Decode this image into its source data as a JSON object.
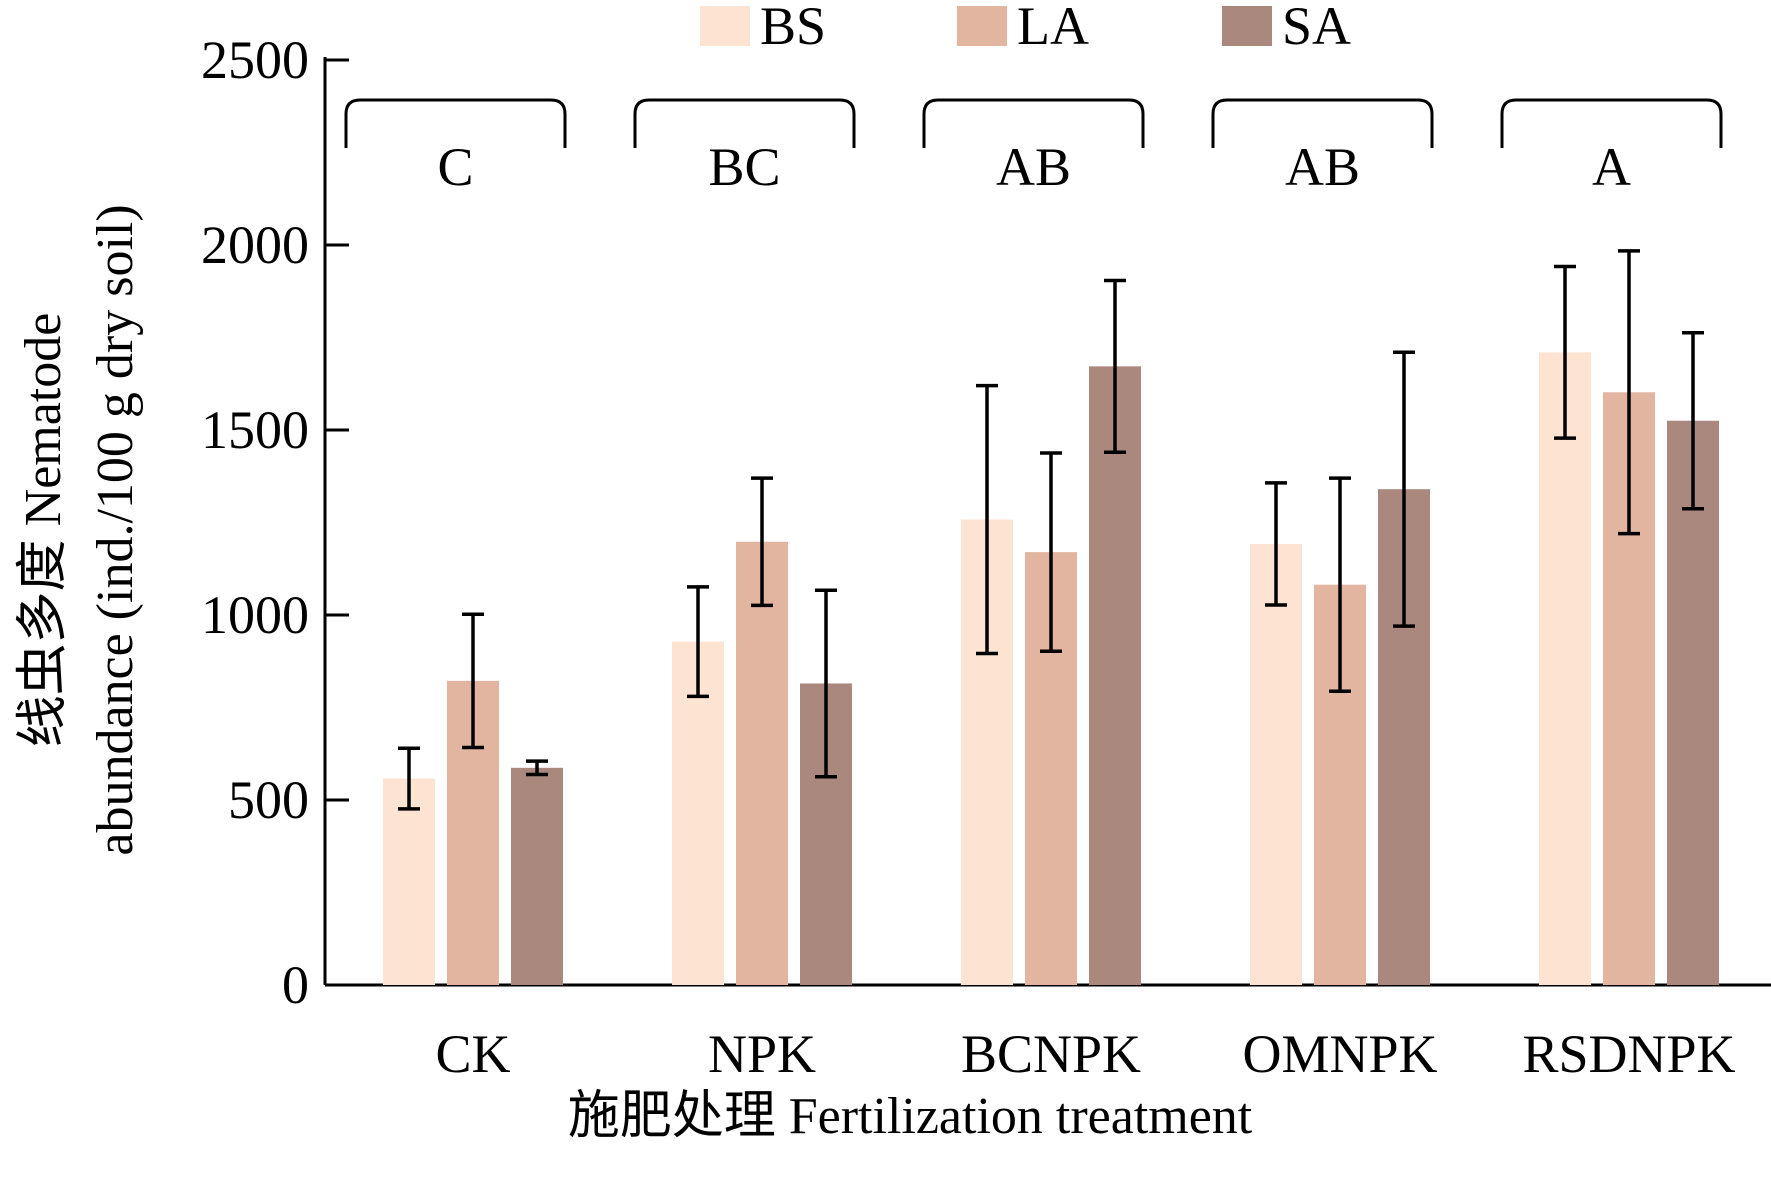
{
  "chart_data": {
    "type": "bar",
    "categories": [
      "CK",
      "NPK",
      "BCNPK",
      "OMNPK",
      "RSDNPK"
    ],
    "series": [
      {
        "name": "BS",
        "color": "#fce3d2",
        "values": [
          558,
          928,
          1258,
          1192,
          1710
        ],
        "errors": [
          82,
          148,
          362,
          165,
          232
        ]
      },
      {
        "name": "LA",
        "color": "#e2b5a1",
        "values": [
          822,
          1198,
          1170,
          1082,
          1602
        ],
        "errors": [
          180,
          172,
          268,
          288,
          382
        ]
      },
      {
        "name": "SA",
        "color": "#ab887e",
        "values": [
          587,
          815,
          1672,
          1340,
          1525
        ],
        "errors": [
          18,
          252,
          232,
          370,
          238
        ]
      }
    ],
    "group_letters": [
      "C",
      "BC",
      "AB",
      "AB",
      "A"
    ],
    "yticks": [
      0,
      500,
      1000,
      1500,
      2000,
      2500
    ],
    "ylim": [
      0,
      2500
    ],
    "ylabel_line1": "线虫多度 Nematode",
    "ylabel_line2": "abundance (ind./100 g dry soil)",
    "xlabel": "施肥处理 Fertilization treatment",
    "legend_position": "top",
    "grid": false
  }
}
